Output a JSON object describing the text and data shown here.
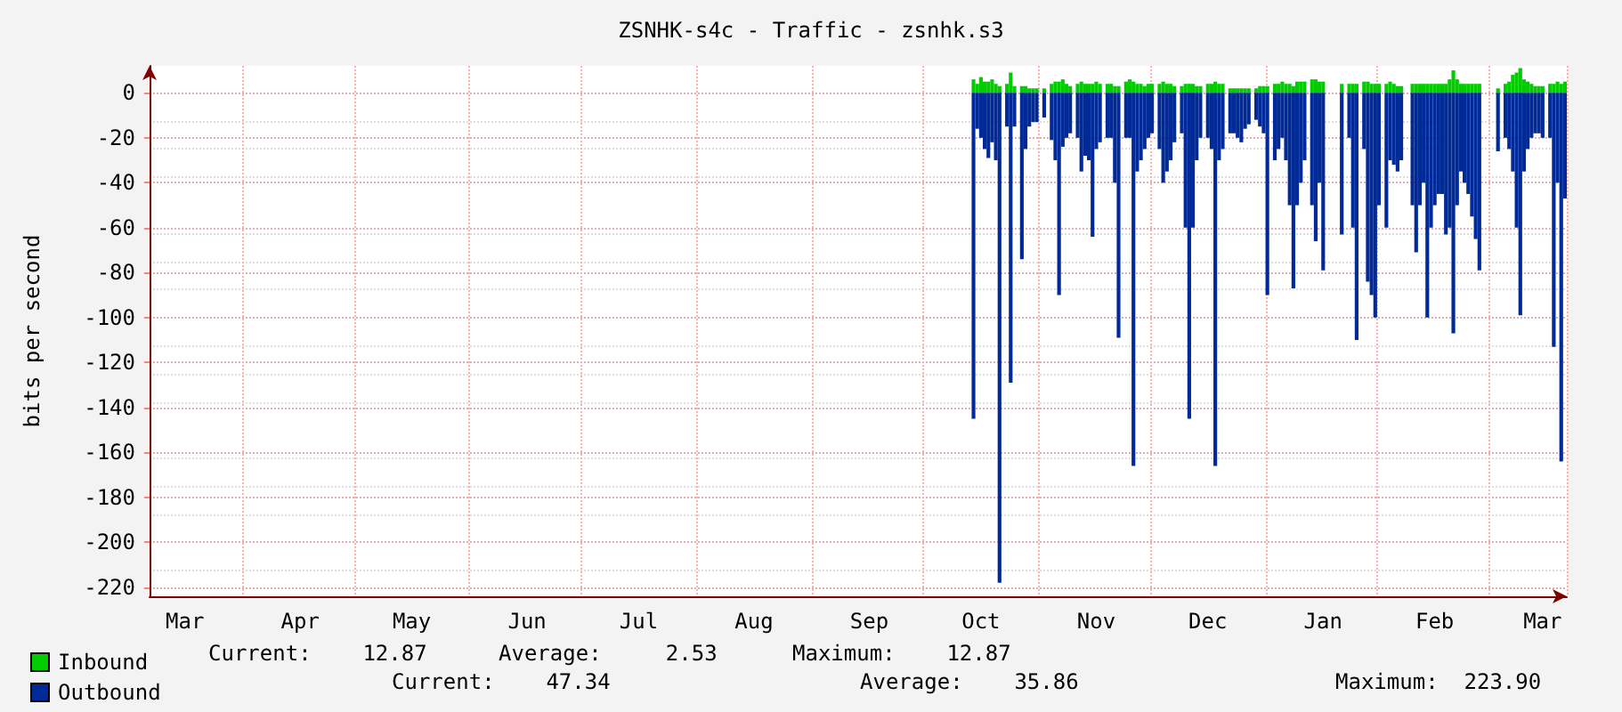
{
  "chart_data": {
    "type": "bar",
    "title": "ZSNHK-s4c - Traffic - zsnhk.s3",
    "ylabel": "bits per second",
    "annotations": [
      "Current:    12.87",
      "Average:     2.53",
      "Maximum:    12.87",
      "Current:    47.34",
      "Average:    35.86",
      "Maximum:  223.90"
    ],
    "legend": "bottom left",
    "grid": true,
    "ylim": [
      -224,
      12
    ],
    "yticks": [
      0,
      -20,
      -40,
      -60,
      -80,
      -100,
      -120,
      -140,
      -160,
      -180,
      -200,
      -220
    ],
    "categories": [
      null,
      null,
      null,
      null,
      null,
      null,
      null,
      null,
      null,
      "Mar",
      null,
      null,
      null,
      null,
      null,
      null,
      null,
      null,
      null,
      null,
      null,
      null,
      null,
      null,
      null,
      null,
      null,
      null,
      null,
      null,
      null,
      null,
      null,
      null,
      null,
      null,
      null,
      null,
      null,
      null,
      "Apr",
      null,
      null,
      null,
      null,
      null,
      null,
      null,
      null,
      null,
      null,
      null,
      null,
      null,
      null,
      null,
      null,
      null,
      null,
      null,
      null,
      null,
      null,
      null,
      null,
      null,
      null,
      null,
      null,
      null,
      "May",
      null,
      null,
      null,
      null,
      null,
      null,
      null,
      null,
      null,
      null,
      null,
      null,
      null,
      null,
      null,
      null,
      null,
      null,
      null,
      null,
      null,
      null,
      null,
      null,
      null,
      null,
      null,
      null,
      null,
      null,
      "Jun",
      null,
      null,
      null,
      null,
      null,
      null,
      null,
      null,
      null,
      null,
      null,
      null,
      null,
      null,
      null,
      null,
      null,
      null,
      null,
      null,
      null,
      null,
      null,
      null,
      null,
      null,
      null,
      null,
      null,
      "Jul",
      null,
      null,
      null,
      null,
      null,
      null,
      null,
      null,
      null,
      null,
      null,
      null,
      null,
      null,
      null,
      null,
      null,
      null,
      null,
      null,
      null,
      null,
      null,
      null,
      null,
      null,
      null,
      null,
      null,
      null,
      "Aug",
      null,
      null,
      null,
      null,
      null,
      null,
      null,
      null,
      null,
      null,
      null,
      null,
      null,
      null,
      null,
      null,
      null,
      null,
      null,
      null,
      null,
      null,
      null,
      null,
      null,
      null,
      null,
      null,
      null,
      null,
      "Sep",
      null,
      null,
      null,
      null,
      null,
      null,
      null,
      null,
      null,
      null,
      null,
      null,
      null,
      null,
      null,
      null,
      null,
      null,
      null,
      null,
      null,
      null,
      null,
      null,
      null,
      null,
      null,
      null,
      null,
      "Oct",
      null,
      null,
      null,
      null,
      null,
      null,
      null,
      null,
      null,
      null,
      null,
      null,
      null,
      null,
      null,
      null,
      null,
      null,
      null,
      null,
      null,
      null,
      null,
      null,
      null,
      null,
      null,
      null,
      null,
      null,
      "Nov",
      null,
      null,
      null,
      null,
      null,
      null,
      null,
      null,
      null,
      null,
      null,
      null,
      null,
      null,
      null,
      null,
      null,
      null,
      null,
      null,
      null,
      null,
      null,
      null,
      null,
      null,
      null,
      null,
      null,
      "Dec",
      null,
      null,
      null,
      null,
      null,
      null,
      null,
      null,
      null,
      null,
      null,
      null,
      null,
      null,
      null,
      null,
      null,
      null,
      null,
      null,
      null,
      null,
      null,
      null,
      null,
      null,
      null,
      null,
      null,
      null,
      "Jan",
      null,
      null,
      null,
      null,
      null,
      null,
      null,
      null,
      null,
      null,
      null,
      null,
      null,
      null,
      null,
      null,
      null,
      null,
      null,
      null,
      null,
      null,
      null,
      null,
      null,
      null,
      null,
      null,
      null,
      "Feb",
      null,
      null,
      null,
      null,
      null,
      null,
      null,
      null,
      null,
      null,
      null,
      null,
      null,
      null,
      null,
      null,
      null,
      null,
      null,
      null,
      null,
      null,
      null,
      null,
      null,
      null,
      null,
      null,
      "Mar",
      null,
      null,
      null,
      null,
      null,
      null
    ],
    "series": [
      {
        "name": "Inbound",
        "color": "#00cc00",
        "values": [
          null,
          null,
          null,
          null,
          null,
          null,
          null,
          null,
          null,
          null,
          null,
          null,
          null,
          null,
          null,
          null,
          null,
          null,
          null,
          null,
          null,
          null,
          null,
          null,
          null,
          null,
          null,
          null,
          null,
          null,
          null,
          null,
          null,
          null,
          null,
          null,
          null,
          null,
          null,
          null,
          null,
          null,
          null,
          null,
          null,
          null,
          null,
          null,
          null,
          null,
          null,
          null,
          null,
          null,
          null,
          null,
          null,
          null,
          null,
          null,
          null,
          null,
          null,
          null,
          null,
          null,
          null,
          null,
          null,
          null,
          null,
          null,
          null,
          null,
          null,
          null,
          null,
          null,
          null,
          null,
          null,
          null,
          null,
          null,
          null,
          null,
          null,
          null,
          null,
          null,
          null,
          null,
          null,
          null,
          null,
          null,
          null,
          null,
          null,
          null,
          null,
          null,
          null,
          null,
          null,
          null,
          null,
          null,
          null,
          null,
          null,
          null,
          null,
          null,
          null,
          null,
          null,
          null,
          null,
          null,
          null,
          null,
          null,
          null,
          null,
          null,
          null,
          null,
          null,
          null,
          null,
          null,
          null,
          null,
          null,
          null,
          null,
          null,
          null,
          null,
          null,
          null,
          null,
          null,
          null,
          null,
          null,
          null,
          null,
          null,
          null,
          null,
          null,
          null,
          null,
          null,
          null,
          null,
          null,
          null,
          null,
          null,
          null,
          null,
          null,
          null,
          null,
          null,
          null,
          null,
          null,
          null,
          null,
          null,
          null,
          null,
          null,
          null,
          null,
          null,
          null,
          null,
          null,
          null,
          null,
          null,
          null,
          null,
          null,
          null,
          null,
          null,
          null,
          null,
          null,
          null,
          null,
          null,
          null,
          null,
          null,
          null,
          null,
          null,
          null,
          null,
          null,
          null,
          null,
          null,
          null,
          null,
          null,
          null,
          null,
          null,
          null,
          null,
          null,
          null,
          null,
          6,
          4,
          7,
          5,
          5,
          6,
          4,
          3,
          null,
          4,
          9,
          3,
          null,
          3,
          3,
          2,
          2,
          2,
          null,
          2,
          null,
          4,
          5,
          5,
          6,
          4,
          3,
          null,
          4,
          5,
          4,
          4,
          4,
          5,
          4,
          null,
          4,
          4,
          3,
          3,
          null,
          5,
          6,
          5,
          4,
          4,
          3,
          4,
          4,
          null,
          4,
          5,
          4,
          4,
          3,
          null,
          3,
          4,
          4,
          4,
          3,
          3,
          null,
          4,
          4,
          5,
          4,
          4,
          null,
          2,
          2,
          2,
          2,
          2,
          2,
          null,
          2,
          3,
          3,
          3,
          null,
          4,
          4,
          5,
          4,
          4,
          3,
          5,
          5,
          5,
          null,
          6,
          6,
          5,
          5,
          null,
          null,
          null,
          null,
          4,
          null,
          4,
          4,
          4,
          null,
          5,
          5,
          4,
          4,
          4,
          null,
          4,
          5,
          4,
          3,
          3,
          null,
          null,
          4,
          4,
          4,
          4,
          4,
          4,
          4,
          4,
          4,
          4,
          6,
          10,
          6,
          4,
          4,
          4,
          4,
          4,
          4,
          null,
          null,
          null,
          null,
          2,
          null,
          4,
          5,
          8,
          9,
          11,
          6,
          5,
          4,
          3,
          3,
          3,
          null,
          4,
          4,
          5,
          4,
          5
        ]
      },
      {
        "name": "Outbound",
        "color": "#002a97",
        "values": [
          null,
          null,
          null,
          null,
          null,
          null,
          null,
          null,
          null,
          null,
          null,
          null,
          null,
          null,
          null,
          null,
          null,
          null,
          null,
          null,
          null,
          null,
          null,
          null,
          null,
          null,
          null,
          null,
          null,
          null,
          null,
          null,
          null,
          null,
          null,
          null,
          null,
          null,
          null,
          null,
          null,
          null,
          null,
          null,
          null,
          null,
          null,
          null,
          null,
          null,
          null,
          null,
          null,
          null,
          null,
          null,
          null,
          null,
          null,
          null,
          null,
          null,
          null,
          null,
          null,
          null,
          null,
          null,
          null,
          null,
          null,
          null,
          null,
          null,
          null,
          null,
          null,
          null,
          null,
          null,
          null,
          null,
          null,
          null,
          null,
          null,
          null,
          null,
          null,
          null,
          null,
          null,
          null,
          null,
          null,
          null,
          null,
          null,
          null,
          null,
          null,
          null,
          null,
          null,
          null,
          null,
          null,
          null,
          null,
          null,
          null,
          null,
          null,
          null,
          null,
          null,
          null,
          null,
          null,
          null,
          null,
          null,
          null,
          null,
          null,
          null,
          null,
          null,
          null,
          null,
          null,
          null,
          null,
          null,
          null,
          null,
          null,
          null,
          null,
          null,
          null,
          null,
          null,
          null,
          null,
          null,
          null,
          null,
          null,
          null,
          null,
          null,
          null,
          null,
          null,
          null,
          null,
          null,
          null,
          null,
          null,
          null,
          null,
          null,
          null,
          null,
          null,
          null,
          null,
          null,
          null,
          null,
          null,
          null,
          null,
          null,
          null,
          null,
          null,
          null,
          null,
          null,
          null,
          null,
          null,
          null,
          null,
          null,
          null,
          null,
          null,
          null,
          null,
          null,
          null,
          null,
          null,
          null,
          null,
          null,
          null,
          null,
          null,
          null,
          null,
          null,
          null,
          null,
          null,
          null,
          null,
          null,
          null,
          null,
          null,
          null,
          null,
          null,
          null,
          null,
          null,
          -145,
          -16,
          -20,
          -25,
          -29,
          -22,
          -30,
          -218,
          null,
          -15,
          -129,
          -15,
          null,
          -74,
          -25,
          -15,
          -13,
          -13,
          null,
          -11,
          null,
          -21,
          -30,
          -90,
          -24,
          -20,
          -18,
          null,
          -20,
          -35,
          -28,
          -30,
          -64,
          -25,
          -22,
          null,
          -20,
          -20,
          -40,
          -109,
          null,
          -20,
          -20,
          -166,
          -35,
          -30,
          -25,
          -20,
          -18,
          null,
          -25,
          -40,
          -35,
          -30,
          -22,
          null,
          -18,
          -60,
          -145,
          -60,
          -30,
          -20,
          null,
          -20,
          -25,
          -166,
          -30,
          -25,
          null,
          -18,
          -18,
          -20,
          -22,
          -16,
          -14,
          null,
          -12,
          -15,
          -18,
          -90,
          null,
          -30,
          -25,
          -20,
          -30,
          -50,
          -87,
          -50,
          -40,
          -30,
          null,
          -50,
          -66,
          -40,
          -79,
          null,
          null,
          null,
          null,
          -63,
          null,
          -20,
          -60,
          -110,
          null,
          -25,
          -84,
          -90,
          -100,
          -50,
          null,
          -60,
          -30,
          -32,
          -35,
          -30,
          null,
          null,
          -50,
          -71,
          -50,
          -40,
          -100,
          -60,
          -50,
          -45,
          -45,
          -63,
          -60,
          -107,
          -50,
          -35,
          -40,
          -45,
          -55,
          -65,
          -79,
          null,
          null,
          null,
          null,
          -26,
          null,
          -20,
          -25,
          -35,
          -60,
          -99,
          -35,
          -25,
          -20,
          -18,
          -18,
          -20,
          null,
          -20,
          -113,
          -40,
          -164,
          -47
        ]
      }
    ]
  }
}
